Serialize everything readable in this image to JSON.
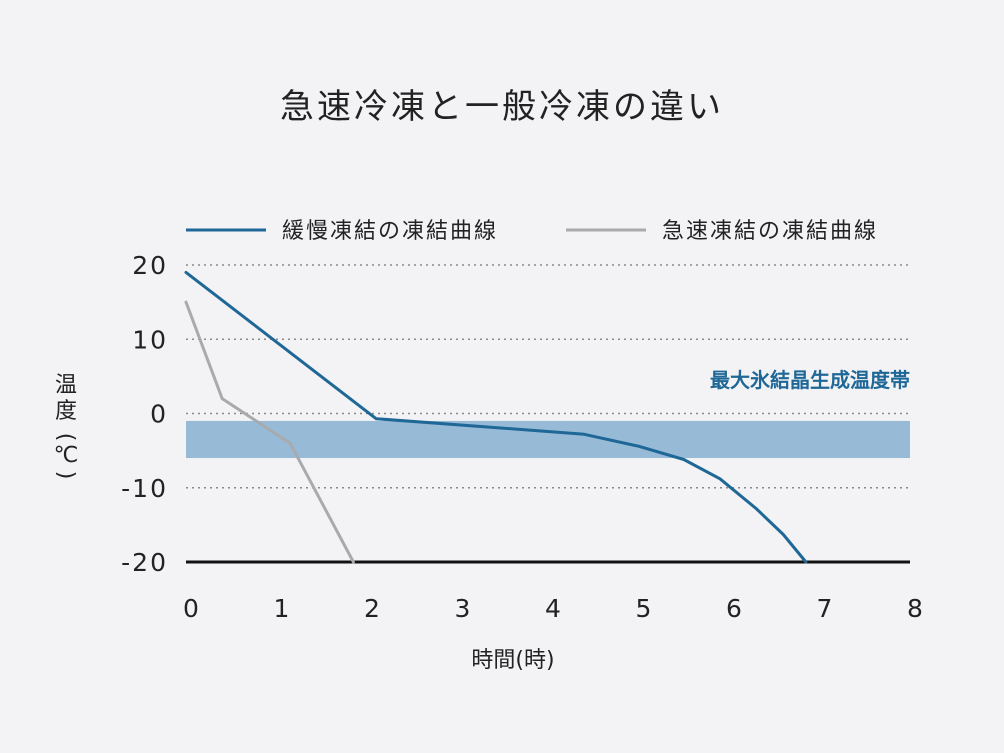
{
  "chart_data": {
    "type": "line",
    "title": "急速冷凍と一般冷凍の違い",
    "xlabel": "時間(時)",
    "ylabel_chars": [
      "温",
      "度",
      "(",
      "℃",
      ")"
    ],
    "xlim": [
      0,
      8
    ],
    "ylim": [
      -20,
      20
    ],
    "x_ticks": [
      "0",
      "1",
      "2",
      "3",
      "4",
      "5",
      "6",
      "7",
      "8"
    ],
    "y_ticks": [
      "20",
      "10",
      "0",
      "-10",
      "-20"
    ],
    "grid": true,
    "legend_position": "top",
    "series": [
      {
        "name": "緩慢凍結の凍結曲線",
        "color": "#1e6796",
        "x": [
          0,
          2.1,
          3.2,
          4.4,
          5.0,
          5.5,
          5.9,
          6.3,
          6.6,
          6.85
        ],
        "y": [
          19,
          -0.7,
          -1.7,
          -2.8,
          -4.4,
          -6.2,
          -8.8,
          -12.8,
          -16.3,
          -20
        ]
      },
      {
        "name": "急速凍結の凍結曲線",
        "color": "#a9aaad",
        "x": [
          0,
          0.4,
          1.15,
          1.85
        ],
        "y": [
          15,
          2,
          -4,
          -20
        ]
      }
    ],
    "band": {
      "label": "最大氷結晶生成温度帯",
      "y_from": -6,
      "y_to": -1,
      "color": "#97bad6"
    }
  }
}
